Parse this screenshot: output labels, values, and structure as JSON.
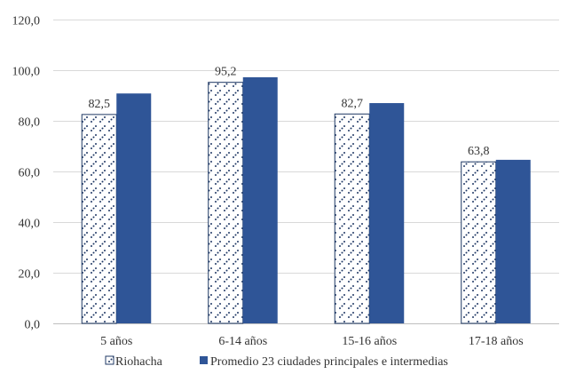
{
  "chart_data": {
    "type": "bar",
    "title": "",
    "xlabel": "",
    "ylabel": "",
    "categories": [
      "5 años",
      "6-14 años",
      "15-16 años",
      "17-18 años"
    ],
    "ylim": [
      0,
      120
    ],
    "yticks": [
      "0,0",
      "20,0",
      "40,0",
      "60,0",
      "80,0",
      "100,0",
      "120,0"
    ],
    "ytick_values": [
      0,
      20,
      40,
      60,
      80,
      100,
      120
    ],
    "grid": true,
    "legend_position": "bottom",
    "series": [
      {
        "name": "Riohacha",
        "values": [
          82.5,
          95.2,
          82.7,
          63.8
        ],
        "value_labels": [
          "82,5",
          "95,2",
          "82,7",
          "63,8"
        ],
        "fill": "dotted-pattern",
        "color": "#ffffff",
        "stroke": "#1f3864",
        "pattern_color": "#1f3864"
      },
      {
        "name": "Promedio 23 ciudades principales e intermedias",
        "values": [
          90.8,
          97.2,
          87.0,
          64.6
        ],
        "fill": "solid",
        "color": "#2f5597"
      }
    ]
  }
}
